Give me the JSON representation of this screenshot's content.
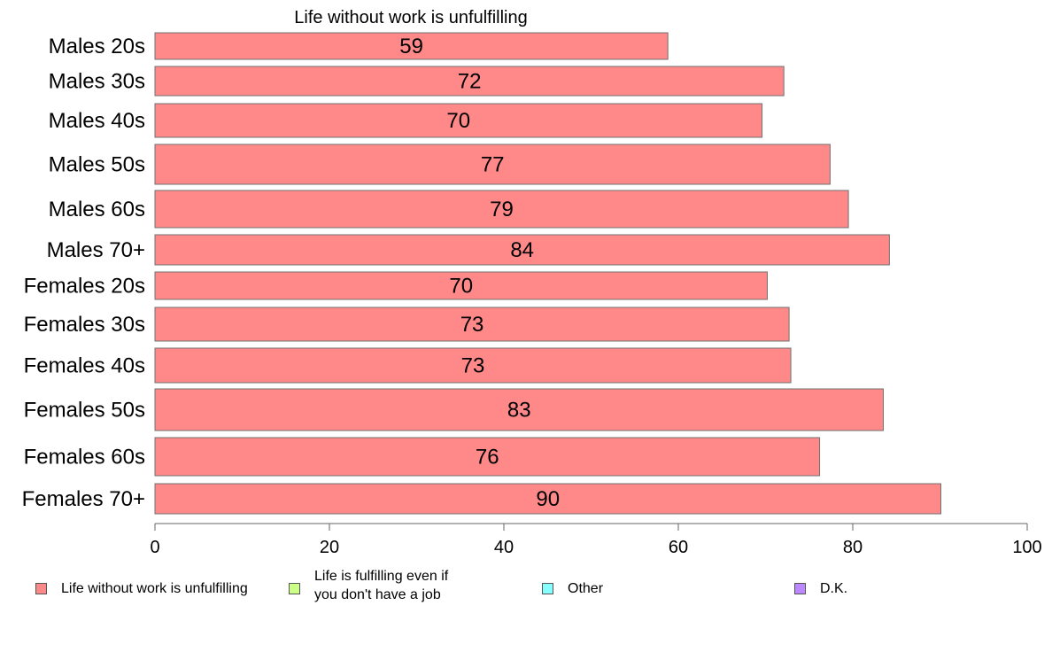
{
  "chart_data": {
    "type": "bar",
    "orientation": "horizontal",
    "title": "Life without work is unfulfilling",
    "categories": [
      "Males 20s",
      "Males 30s",
      "Males 40s",
      "Males 50s",
      "Males 60s",
      "Males 70+",
      "Females 20s",
      "Females 30s",
      "Females 40s",
      "Females 50s",
      "Females 60s",
      "Females 70+"
    ],
    "values": [
      58.8,
      72.1,
      69.6,
      77.4,
      79.5,
      84.2,
      70.2,
      72.7,
      72.9,
      83.5,
      76.2,
      90.1
    ],
    "value_labels": [
      "59",
      "72",
      "70",
      "77",
      "79",
      "84",
      "70",
      "73",
      "73",
      "83",
      "76",
      "90"
    ],
    "xlim": [
      0,
      100
    ],
    "xticks": [
      0,
      20,
      40,
      60,
      80,
      100
    ],
    "xtick_labels": [
      "0",
      "20",
      "40",
      "60",
      "80",
      "100"
    ],
    "grid": false,
    "bar_color": "#FF8888",
    "legend_position": "bottom",
    "legend": [
      {
        "label": "Life without work is unfulfilling",
        "color": "#FF8888"
      },
      {
        "label": "Life is fulfilling even if\nyou don't have a job",
        "color": "#CCFF88"
      },
      {
        "label": "Other",
        "color": "#88FFFF"
      },
      {
        "label": "D.K.",
        "color": "#BB88FF"
      }
    ]
  }
}
